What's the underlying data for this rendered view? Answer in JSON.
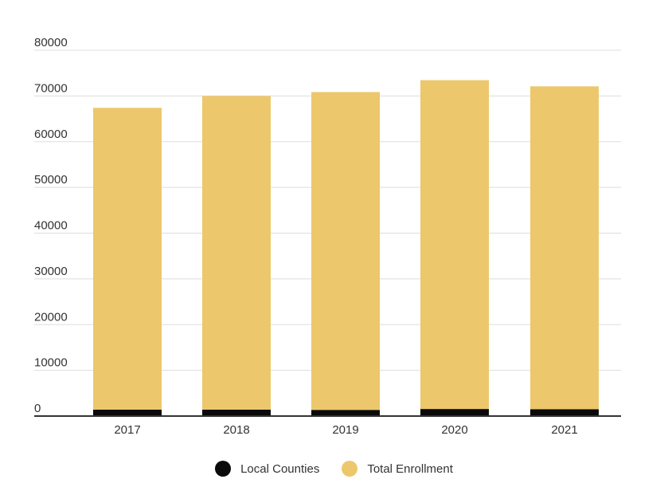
{
  "chart_data": {
    "type": "bar",
    "stacked": true,
    "categories": [
      "2017",
      "2018",
      "2019",
      "2020",
      "2021"
    ],
    "series": [
      {
        "name": "Local Counties",
        "color": "#0a0a0a",
        "values": [
          1400,
          1400,
          1350,
          1550,
          1500
        ]
      },
      {
        "name": "Total Enrollment",
        "color": "#edc76c",
        "values": [
          66000,
          68600,
          69500,
          71900,
          70600
        ]
      }
    ],
    "y_ticks": [
      "0",
      "10000",
      "20000",
      "30000",
      "40000",
      "50000",
      "60000",
      "70000",
      "80000"
    ],
    "ylim": [
      0,
      80000
    ],
    "grid": true,
    "legend_position": "bottom",
    "title": "",
    "xlabel": "",
    "ylabel": ""
  }
}
